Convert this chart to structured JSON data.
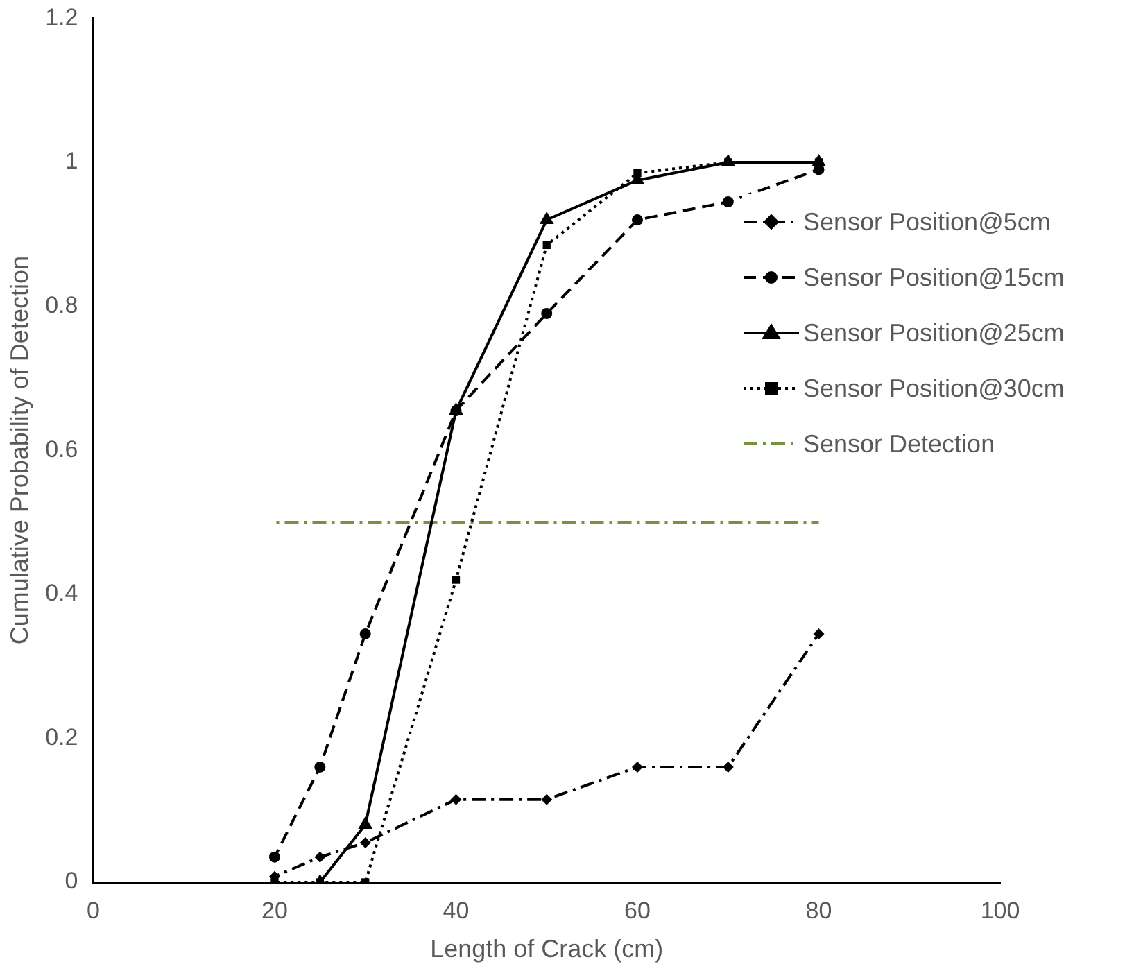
{
  "chart_data": {
    "type": "line",
    "xlabel": "Length of Crack (cm)",
    "ylabel": "Cumulative Probability of Detection",
    "xlim": [
      0,
      100
    ],
    "xticks": [
      0,
      20,
      40,
      60,
      80,
      100
    ],
    "ylim": [
      0,
      1.2
    ],
    "yticks": [
      0,
      0.2,
      0.4,
      0.6,
      0.8,
      1,
      1.2
    ],
    "grid": false,
    "legend": "right",
    "series": [
      {
        "name": "Sensor Position@5cm",
        "color": "#000000",
        "line_style": "dashdot",
        "marker": "diamond",
        "x": [
          20,
          25,
          30,
          40,
          50,
          60,
          70,
          80
        ],
        "values": [
          0.008,
          0.035,
          0.055,
          0.115,
          0.115,
          0.16,
          0.16,
          0.345
        ]
      },
      {
        "name": "Sensor Position@15cm",
        "color": "#000000",
        "line_style": "dashed",
        "marker": "circle",
        "x": [
          20,
          25,
          30,
          40,
          50,
          60,
          70,
          80
        ],
        "values": [
          0.035,
          0.16,
          0.345,
          0.655,
          0.79,
          0.92,
          0.945,
          0.99
        ]
      },
      {
        "name": "Sensor Position@25cm",
        "color": "#000000",
        "line_style": "solid",
        "marker": "triangle",
        "x": [
          25,
          30,
          40,
          50,
          60,
          70,
          80
        ],
        "values": [
          0,
          0.08,
          0.655,
          0.92,
          0.975,
          1,
          1
        ]
      },
      {
        "name": "Sensor Position@30cm",
        "color": "#000000",
        "line_style": "dotted",
        "marker": "square",
        "x": [
          20,
          25,
          30,
          40,
          50,
          60,
          70,
          80
        ],
        "values": [
          0,
          0,
          0,
          0.42,
          0.885,
          0.985,
          1,
          1
        ]
      },
      {
        "name": "Sensor Detection",
        "color": "#76923c",
        "line_style": "dashdot",
        "marker": "none",
        "x": [
          20,
          80
        ],
        "values": [
          0.5,
          0.5
        ]
      }
    ]
  }
}
